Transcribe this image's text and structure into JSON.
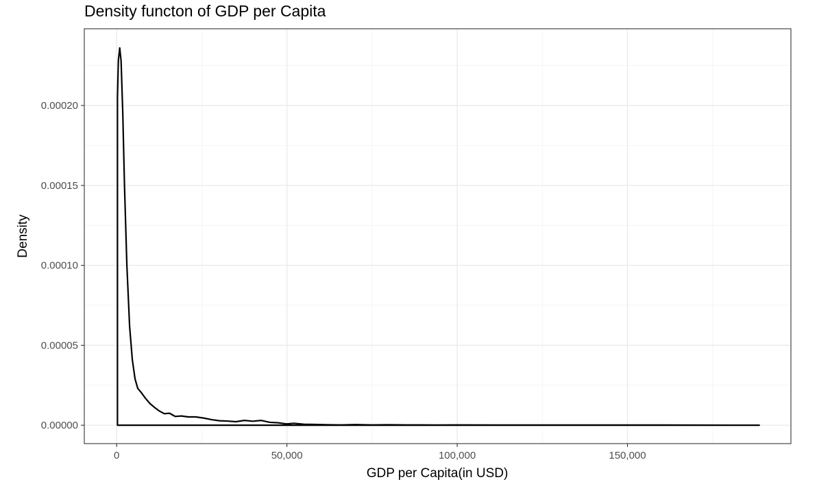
{
  "chart_data": {
    "type": "line",
    "title": "Density functon of GDP per Capita",
    "xlabel": "GDP per Capita(in USD)",
    "ylabel": "Density",
    "xlim": [
      -9500,
      198000
    ],
    "ylim": [
      -1.15e-05,
      0.000248
    ],
    "x_ticks": [
      {
        "value": 0,
        "label": "0"
      },
      {
        "value": 50000,
        "label": "50,000"
      },
      {
        "value": 100000,
        "label": "100,000"
      },
      {
        "value": 150000,
        "label": "150,000"
      }
    ],
    "y_ticks": [
      {
        "value": 0.0,
        "label": "0.00000"
      },
      {
        "value": 5e-05,
        "label": "0.00005"
      },
      {
        "value": 0.0001,
        "label": "0.00010"
      },
      {
        "value": 0.00015,
        "label": "0.00015"
      },
      {
        "value": 0.0002,
        "label": "0.00020"
      }
    ],
    "grid": true,
    "legend": false,
    "colors": {
      "line": "#000000",
      "grid": "#ebebeb",
      "panel_border": "#333333"
    },
    "series": [
      {
        "x": [
          240,
          240,
          500,
          900,
          1300,
          1800,
          2300,
          3000,
          3800,
          4600,
          5400,
          6200,
          7200,
          8400,
          9800,
          11200,
          12600,
          14000,
          15500,
          17200,
          19000,
          21000,
          23200,
          25500,
          27800,
          30200,
          32500,
          35000,
          37500,
          40000,
          42500,
          45000,
          47500,
          50000,
          52000,
          55000,
          58000,
          62000,
          66000,
          70000,
          75000,
          80000,
          85000,
          90000,
          95000,
          100000,
          110000,
          120000,
          130000,
          140000,
          150000,
          160000,
          170000,
          180000,
          188700,
          240
        ],
        "y": [
          0,
          0.000205,
          0.000228,
          0.000236,
          0.000228,
          0.000195,
          0.00015,
          0.0001,
          6.2e-05,
          4.1e-05,
          2.9e-05,
          2.3e-05,
          2.05e-05,
          1.7e-05,
          1.35e-05,
          1.1e-05,
          8.8e-06,
          7.2e-06,
          7.5e-06,
          5.5e-06,
          5.8e-06,
          5.2e-06,
          5.2e-06,
          4.5e-06,
          3.5e-06,
          2.8e-06,
          2.6e-06,
          2.2e-06,
          3e-06,
          2.5e-06,
          3e-06,
          1.8e-06,
          1.5e-06,
          8e-07,
          1.2e-06,
          6e-07,
          5e-07,
          3e-07,
          2e-07,
          4e-07,
          2e-07,
          3e-07,
          2e-07,
          2e-07,
          1e-07,
          2e-07,
          1e-07,
          1e-07,
          1e-07,
          1e-07,
          1.5e-07,
          1e-07,
          5e-08,
          3e-08,
          0,
          0
        ]
      }
    ]
  }
}
